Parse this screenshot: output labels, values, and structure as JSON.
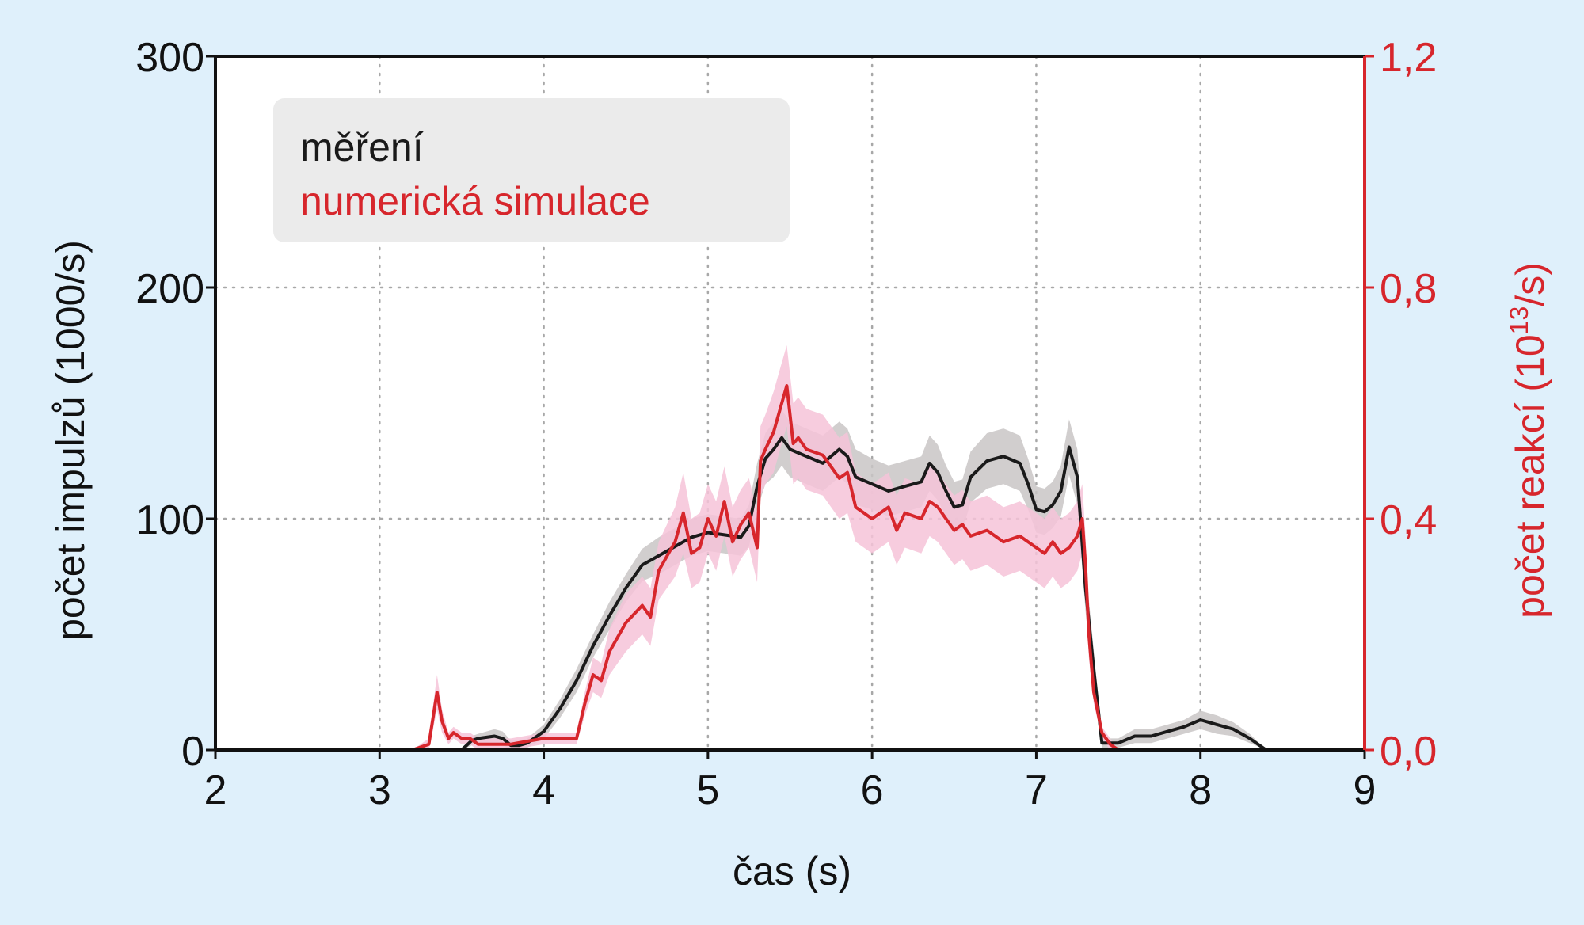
{
  "chart_data": {
    "type": "line",
    "xlabel": "čas (s)",
    "ylabel_left": "počet impulzů (1000/s)",
    "ylabel_right_main": "počet reakcí (10",
    "ylabel_right_sup": "13",
    "ylabel_right_end": "/s)",
    "xlim": [
      2,
      9
    ],
    "ylim_left": [
      0,
      300
    ],
    "ylim_right": [
      0,
      1.2
    ],
    "x_ticks": [
      "2",
      "3",
      "4",
      "5",
      "6",
      "7",
      "8",
      "9"
    ],
    "y_ticks_left": [
      "0",
      "100",
      "200",
      "300"
    ],
    "y_ticks_right": [
      "0,0",
      "0,4",
      "0,8",
      "1,2"
    ],
    "grid": true,
    "legend_position": "top-left",
    "colors": {
      "background": "#dff0fb",
      "measurement": "#1a1a1a",
      "measurement_band": "#c9c6c6",
      "simulation": "#d7262c",
      "simulation_band": "#f6c3d8",
      "right_axis": "#d7262c"
    },
    "series": [
      {
        "name": "měření",
        "axis": "left",
        "x": [
          2.0,
          3.0,
          3.5,
          3.56,
          3.6,
          3.7,
          3.75,
          3.8,
          3.85,
          3.9,
          4.0,
          4.1,
          4.2,
          4.3,
          4.4,
          4.5,
          4.6,
          4.7,
          4.8,
          4.9,
          5.0,
          5.1,
          5.2,
          5.25,
          5.3,
          5.35,
          5.4,
          5.45,
          5.5,
          5.6,
          5.7,
          5.8,
          5.85,
          5.9,
          6.0,
          6.1,
          6.2,
          6.3,
          6.35,
          6.4,
          6.45,
          6.5,
          6.55,
          6.6,
          6.7,
          6.8,
          6.9,
          6.95,
          7.0,
          7.05,
          7.1,
          7.15,
          7.2,
          7.25,
          7.3,
          7.35,
          7.4,
          7.45,
          7.5,
          7.6,
          7.7,
          7.8,
          7.9,
          8.0,
          8.1,
          8.2,
          8.3,
          8.4,
          8.45,
          8.6,
          9.0
        ],
        "values": [
          0,
          0,
          0,
          4,
          5,
          6,
          5,
          2,
          2,
          3,
          8,
          18,
          30,
          45,
          58,
          70,
          80,
          84,
          88,
          92,
          94,
          93,
          92,
          97,
          114,
          126,
          130,
          135,
          130,
          127,
          124,
          130,
          127,
          118,
          115,
          112,
          114,
          116,
          124,
          120,
          112,
          105,
          106,
          118,
          125,
          127,
          124,
          115,
          104,
          103,
          106,
          112,
          131,
          118,
          70,
          35,
          3,
          3,
          3,
          6,
          6,
          8,
          10,
          13,
          11,
          9,
          5,
          0,
          0,
          0,
          0
        ],
        "band_halfwidth": [
          0,
          0,
          0,
          2,
          2,
          3,
          3,
          2,
          2,
          2,
          3,
          4,
          5,
          5,
          6,
          6,
          7,
          8,
          8,
          8,
          8,
          8,
          8,
          9,
          10,
          11,
          12,
          12,
          12,
          12,
          12,
          12,
          12,
          12,
          11,
          11,
          11,
          11,
          12,
          12,
          11,
          11,
          11,
          11,
          12,
          12,
          12,
          11,
          10,
          10,
          10,
          11,
          12,
          12,
          10,
          8,
          2,
          2,
          2,
          3,
          3,
          3,
          3,
          4,
          4,
          3,
          2,
          0,
          0,
          0,
          0
        ]
      },
      {
        "name": "numerická simulace",
        "axis": "right",
        "x": [
          2.0,
          3.2,
          3.3,
          3.35,
          3.38,
          3.42,
          3.45,
          3.5,
          3.55,
          3.6,
          3.8,
          4.0,
          4.2,
          4.25,
          4.3,
          4.35,
          4.4,
          4.5,
          4.6,
          4.65,
          4.7,
          4.8,
          4.85,
          4.9,
          4.95,
          5.0,
          5.05,
          5.1,
          5.15,
          5.2,
          5.25,
          5.3,
          5.32,
          5.35,
          5.4,
          5.45,
          5.48,
          5.5,
          5.52,
          5.55,
          5.6,
          5.7,
          5.8,
          5.85,
          5.9,
          6.0,
          6.1,
          6.15,
          6.2,
          6.3,
          6.35,
          6.4,
          6.45,
          6.5,
          6.55,
          6.6,
          6.7,
          6.8,
          6.9,
          7.0,
          7.05,
          7.1,
          7.15,
          7.2,
          7.25,
          7.28,
          7.3,
          7.32,
          7.35,
          7.4,
          7.45,
          7.5,
          9.0
        ],
        "values": [
          0,
          0,
          0.01,
          0.1,
          0.05,
          0.02,
          0.03,
          0.02,
          0.02,
          0.01,
          0.01,
          0.02,
          0.02,
          0.08,
          0.13,
          0.12,
          0.17,
          0.22,
          0.25,
          0.23,
          0.31,
          0.36,
          0.41,
          0.34,
          0.35,
          0.4,
          0.37,
          0.43,
          0.36,
          0.39,
          0.41,
          0.35,
          0.5,
          0.52,
          0.55,
          0.6,
          0.63,
          0.58,
          0.53,
          0.54,
          0.52,
          0.51,
          0.47,
          0.48,
          0.42,
          0.4,
          0.42,
          0.38,
          0.41,
          0.4,
          0.43,
          0.42,
          0.4,
          0.38,
          0.39,
          0.37,
          0.38,
          0.36,
          0.37,
          0.35,
          0.34,
          0.36,
          0.34,
          0.35,
          0.37,
          0.4,
          0.32,
          0.2,
          0.1,
          0.03,
          0.01,
          0,
          0
        ],
        "band_halfwidth": [
          0,
          0,
          0.01,
          0.03,
          0.02,
          0.01,
          0.01,
          0.01,
          0.01,
          0.01,
          0.01,
          0.01,
          0.01,
          0.02,
          0.03,
          0.03,
          0.04,
          0.05,
          0.05,
          0.05,
          0.05,
          0.06,
          0.07,
          0.06,
          0.06,
          0.06,
          0.06,
          0.06,
          0.06,
          0.06,
          0.06,
          0.06,
          0.06,
          0.06,
          0.07,
          0.07,
          0.07,
          0.07,
          0.07,
          0.07,
          0.07,
          0.07,
          0.07,
          0.07,
          0.06,
          0.06,
          0.06,
          0.06,
          0.06,
          0.06,
          0.06,
          0.06,
          0.06,
          0.06,
          0.06,
          0.06,
          0.06,
          0.06,
          0.06,
          0.06,
          0.06,
          0.06,
          0.06,
          0.06,
          0.06,
          0.06,
          0.05,
          0.04,
          0.02,
          0.01,
          0.01,
          0,
          0
        ]
      }
    ]
  }
}
